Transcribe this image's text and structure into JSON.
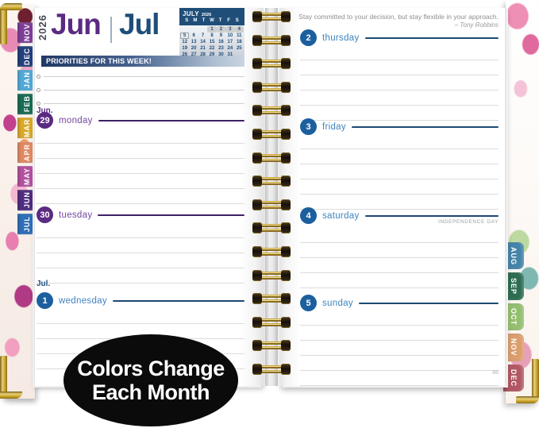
{
  "header": {
    "year": "2026",
    "month_left": "Jun",
    "month_right": "Jul"
  },
  "mini_calendar": {
    "title_month": "JULY",
    "title_year": "2026",
    "day_headers": [
      "S",
      "M",
      "T",
      "W",
      "T",
      "F",
      "S"
    ],
    "cells": [
      {
        "d": "",
        "s": ""
      },
      {
        "d": "",
        "s": ""
      },
      {
        "d": "",
        "s": ""
      },
      {
        "d": "1",
        "s": "hl"
      },
      {
        "d": "2",
        "s": "hl"
      },
      {
        "d": "3",
        "s": "hl"
      },
      {
        "d": "4",
        "s": "hl"
      },
      {
        "d": "5",
        "s": "box"
      },
      {
        "d": "6",
        "s": ""
      },
      {
        "d": "7",
        "s": ""
      },
      {
        "d": "8",
        "s": ""
      },
      {
        "d": "9",
        "s": ""
      },
      {
        "d": "10",
        "s": ""
      },
      {
        "d": "11",
        "s": ""
      },
      {
        "d": "12",
        "s": ""
      },
      {
        "d": "13",
        "s": ""
      },
      {
        "d": "14",
        "s": ""
      },
      {
        "d": "15",
        "s": ""
      },
      {
        "d": "16",
        "s": ""
      },
      {
        "d": "17",
        "s": ""
      },
      {
        "d": "18",
        "s": ""
      },
      {
        "d": "19",
        "s": ""
      },
      {
        "d": "20",
        "s": ""
      },
      {
        "d": "21",
        "s": ""
      },
      {
        "d": "22",
        "s": ""
      },
      {
        "d": "23",
        "s": ""
      },
      {
        "d": "24",
        "s": ""
      },
      {
        "d": "25",
        "s": ""
      },
      {
        "d": "26",
        "s": ""
      },
      {
        "d": "27",
        "s": ""
      },
      {
        "d": "28",
        "s": ""
      },
      {
        "d": "29",
        "s": ""
      },
      {
        "d": "30",
        "s": ""
      },
      {
        "d": "31",
        "s": ""
      },
      {
        "d": "",
        "s": ""
      }
    ]
  },
  "priorities": {
    "title": "PRIORITIES FOR THIS WEEK!"
  },
  "left_page": {
    "month_label_top": "Jun.",
    "month_label_bottom": "Jul.",
    "days": [
      {
        "num": "29",
        "name": "monday"
      },
      {
        "num": "30",
        "name": "tuesday"
      },
      {
        "num": "1",
        "name": "wednesday"
      }
    ]
  },
  "right_page": {
    "quote": "Stay committed to your decision, but stay flexible in your approach.",
    "quote_author": "– Tony Robbins",
    "days": [
      {
        "num": "2",
        "name": "thursday"
      },
      {
        "num": "3",
        "name": "friday"
      },
      {
        "num": "4",
        "name": "saturday",
        "note": "INDEPENDENCE DAY"
      },
      {
        "num": "5",
        "name": "sunday"
      }
    ],
    "holiday_note": "INDEPENDENCE DAY",
    "page_number": "88"
  },
  "tabs_left": [
    {
      "label": "NOV",
      "color": "#7d3f98"
    },
    {
      "label": "DEC",
      "color": "#24407c"
    },
    {
      "label": "JAN",
      "color": "#52a8d8"
    },
    {
      "label": "FEB",
      "color": "#1b6b55"
    },
    {
      "label": "MAR",
      "color": "#d9a92a"
    },
    {
      "label": "APR",
      "color": "#e08a63"
    },
    {
      "label": "MAY",
      "color": "#b3509f"
    },
    {
      "label": "JUN",
      "color": "#4f2d7f"
    },
    {
      "label": "JUL",
      "color": "#2e6fb7"
    }
  ],
  "tabs_right": [
    {
      "label": "AUG",
      "color": "#4484a8"
    },
    {
      "label": "SEP",
      "color": "#2d6e52"
    },
    {
      "label": "OCT",
      "color": "#95bf70"
    },
    {
      "label": "NOV",
      "color": "#dc9e6d"
    },
    {
      "label": "DEC",
      "color": "#b25864"
    }
  ],
  "badge": {
    "line1": "Colors Change",
    "line2": "Each Month"
  },
  "colors": {
    "jun_heading": "#5b2a82",
    "jun_circle": "#5b2a82",
    "jun_name": "#7448a0",
    "jun_rule": "#3f2066",
    "jul_heading": "#1f4e79",
    "jul_circle": "#1c5f9e",
    "jul_name": "#3d83bf",
    "jul_rule": "#1c4a73",
    "calendar_header_bg": "#1f4e79",
    "banner_start": "#203864",
    "banner_end": "#c9d4e0",
    "gold": "#c9a227",
    "rule_gray": "#dcdcdc"
  }
}
